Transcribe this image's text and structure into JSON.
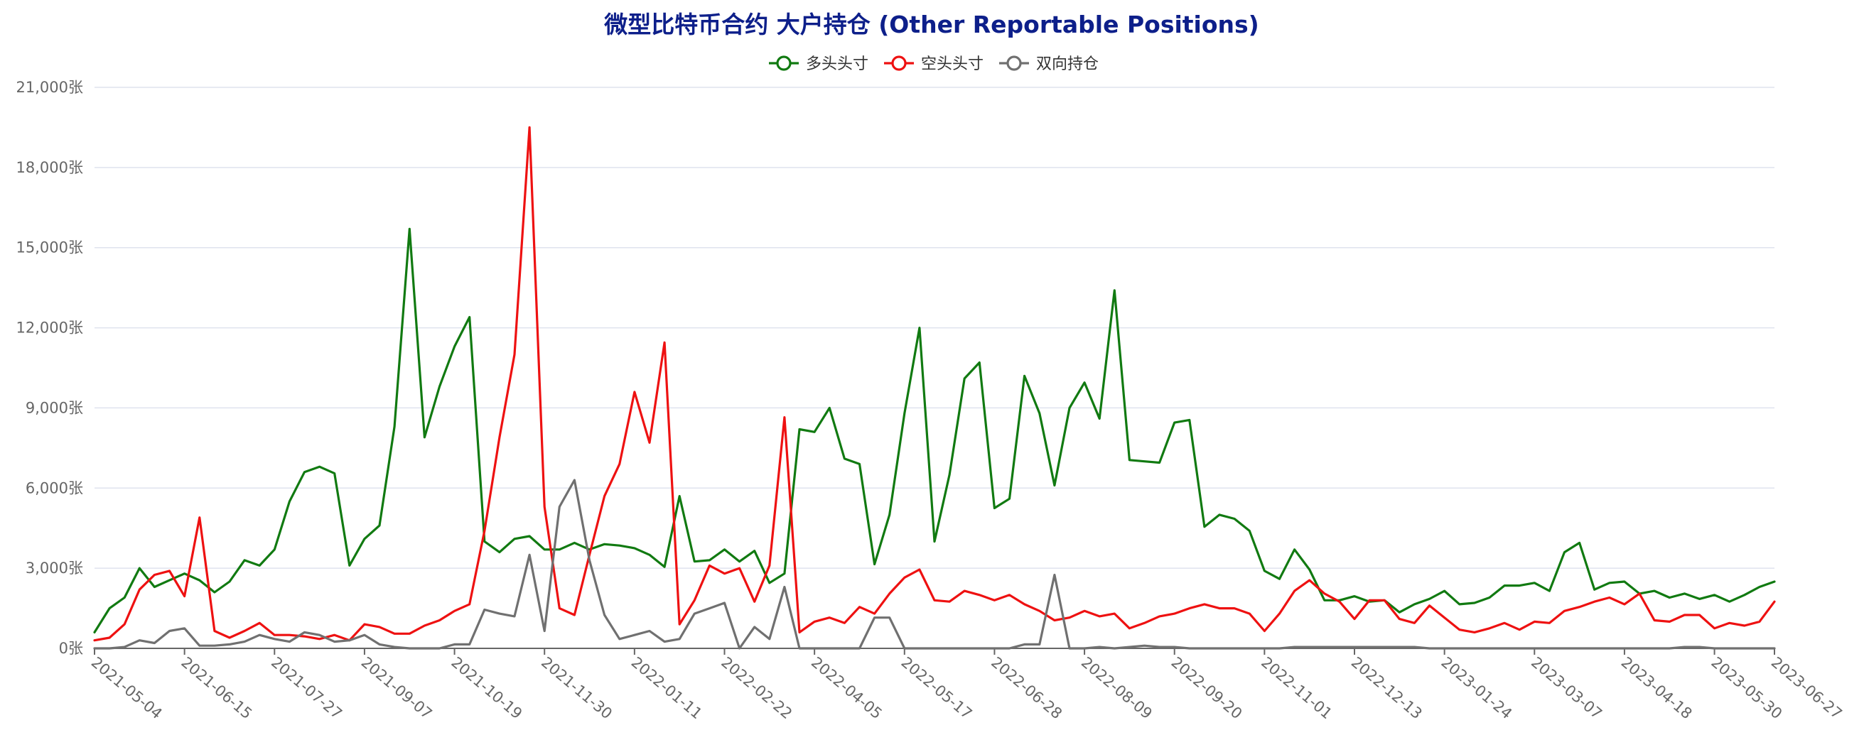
{
  "chart_data": {
    "type": "line",
    "title": "微型比特币合约 大户持仓 (Other Reportable Positions)",
    "y_unit": "张",
    "ylim": [
      0,
      21000
    ],
    "y_ticks": [
      "0张",
      "3,000张",
      "6,000张",
      "9,000张",
      "12,000张",
      "15,000张",
      "18,000张",
      "21,000张"
    ],
    "x_tick_labels": [
      "2021-05-04",
      "2021-06-15",
      "2021-07-27",
      "2021-09-07",
      "2021-10-19",
      "2021-11-30",
      "2022-01-11",
      "2022-02-22",
      "2022-04-05",
      "2022-05-17",
      "2022-06-28",
      "2022-08-09",
      "2022-09-20",
      "2022-11-01",
      "2022-12-13",
      "2023-01-24",
      "2023-03-07",
      "2023-04-18",
      "2023-05-30",
      "2023-06-27"
    ],
    "legend_position": "top-center",
    "grid": true,
    "series": [
      {
        "name": "多头头寸",
        "color": "#117a11",
        "values": [
          600,
          1500,
          1900,
          3000,
          2300,
          2550,
          2800,
          2550,
          2100,
          2500,
          3300,
          3100,
          3700,
          5500,
          6600,
          6800,
          6550,
          3100,
          4100,
          4600,
          8300,
          15700,
          7900,
          9800,
          11300,
          12400,
          4000,
          3600,
          4100,
          4200,
          3700,
          3700,
          3950,
          3700,
          3900,
          3850,
          3750,
          3500,
          3050,
          5700,
          3250,
          3300,
          3700,
          3250,
          3650,
          2450,
          2800,
          8200,
          8100,
          9000,
          7100,
          6900,
          3150,
          5000,
          8800,
          12000,
          4000,
          6500,
          10100,
          10700,
          5250,
          5600,
          10200,
          8800,
          6100,
          9000,
          9950,
          8600,
          13400,
          7050,
          7000,
          6950,
          8450,
          8550,
          4550,
          5000,
          4850,
          4400,
          2900,
          2600,
          3700,
          2950,
          1800,
          1800,
          1950,
          1750,
          1800,
          1350,
          1650,
          1850,
          2150,
          1650,
          1700,
          1900,
          2350,
          2350,
          2450,
          2150,
          3600,
          3950,
          2200,
          2450,
          2500,
          2050,
          2150,
          1900,
          2050,
          1850,
          2000,
          1750,
          2000,
          2300,
          2500
        ]
      },
      {
        "name": "空头头寸",
        "color": "#ee1111",
        "values": [
          300,
          400,
          900,
          2200,
          2750,
          2900,
          1950,
          4900,
          650,
          400,
          650,
          950,
          500,
          500,
          450,
          350,
          500,
          300,
          900,
          800,
          550,
          550,
          850,
          1050,
          1400,
          1650,
          4400,
          7900,
          11000,
          19500,
          5300,
          1500,
          1250,
          3500,
          5700,
          6900,
          9600,
          7700,
          11450,
          900,
          1800,
          3100,
          2800,
          3000,
          1750,
          3100,
          8650,
          600,
          1000,
          1150,
          950,
          1550,
          1300,
          2050,
          2650,
          2950,
          1800,
          1750,
          2150,
          2000,
          1800,
          2000,
          1650,
          1400,
          1050,
          1150,
          1400,
          1200,
          1300,
          750,
          950,
          1200,
          1300,
          1500,
          1650,
          1500,
          1500,
          1300,
          650,
          1300,
          2150,
          2550,
          2050,
          1750,
          1100,
          1800,
          1800,
          1100,
          950,
          1600,
          1150,
          700,
          600,
          750,
          950,
          700,
          1000,
          950,
          1400,
          1550,
          1750,
          1900,
          1650,
          2050,
          1050,
          1000,
          1250,
          1250,
          750,
          950,
          850,
          1000,
          1750
        ]
      },
      {
        "name": "双向持仓",
        "color": "#707070",
        "values": [
          0,
          0,
          50,
          300,
          200,
          650,
          750,
          100,
          100,
          150,
          250,
          500,
          350,
          250,
          600,
          500,
          250,
          300,
          500,
          150,
          50,
          0,
          0,
          0,
          150,
          150,
          1450,
          1300,
          1200,
          3500,
          650,
          5300,
          6300,
          3300,
          1250,
          350,
          500,
          650,
          250,
          350,
          1300,
          1500,
          1700,
          0,
          800,
          350,
          2300,
          0,
          0,
          0,
          0,
          0,
          1150,
          1150,
          0,
          0,
          0,
          0,
          0,
          0,
          0,
          0,
          150,
          150,
          2750,
          0,
          0,
          50,
          0,
          50,
          100,
          50,
          50,
          0,
          0,
          0,
          0,
          0,
          0,
          0,
          50,
          50,
          50,
          50,
          50,
          50,
          50,
          50,
          50,
          0,
          0,
          0,
          0,
          0,
          0,
          0,
          0,
          0,
          0,
          0,
          0,
          0,
          0,
          0,
          0,
          0,
          50,
          50,
          0,
          0,
          0,
          0,
          0
        ]
      }
    ]
  }
}
